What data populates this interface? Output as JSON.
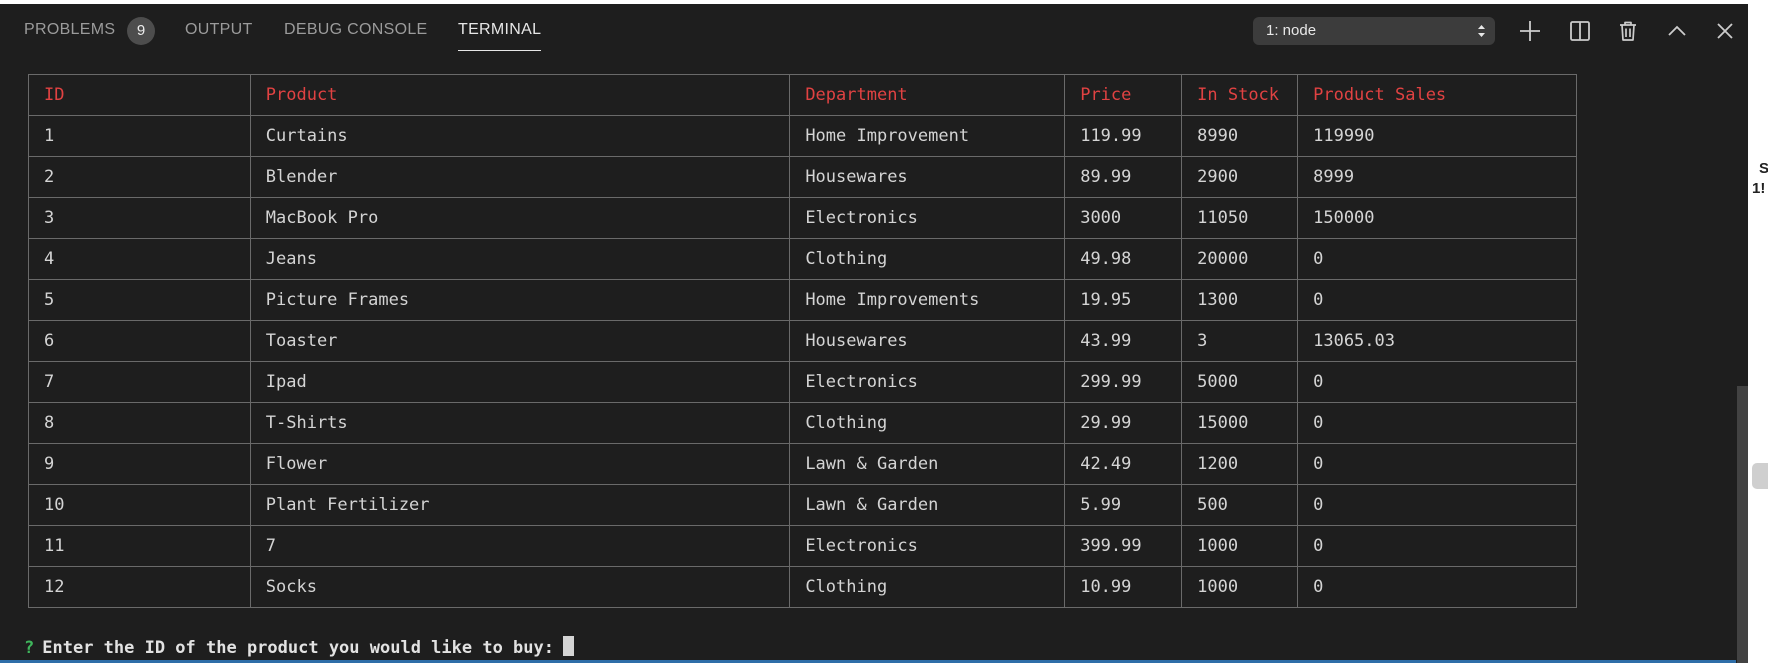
{
  "tabs": [
    {
      "label": "PROBLEMS",
      "badge": "9"
    },
    {
      "label": "OUTPUT"
    },
    {
      "label": "DEBUG CONSOLE"
    },
    {
      "label": "TERMINAL"
    }
  ],
  "terminal_select": {
    "value": "1: node"
  },
  "toolbar_icons": [
    "plus-icon",
    "split-icon",
    "trash-icon",
    "chevron-up-icon",
    "close-icon"
  ],
  "table": {
    "columns": [
      "ID",
      "Product",
      "Department",
      "Price",
      "In Stock",
      "Product Sales"
    ],
    "rows": [
      [
        "1",
        "Curtains",
        "Home Improvement",
        "119.99",
        "8990",
        "119990"
      ],
      [
        "2",
        "Blender",
        "Housewares",
        "89.99",
        "2900",
        "8999"
      ],
      [
        "3",
        "MacBook Pro",
        "Electronics",
        "3000",
        "11050",
        "150000"
      ],
      [
        "4",
        "Jeans",
        "Clothing",
        "49.98",
        "20000",
        "0"
      ],
      [
        "5",
        "Picture Frames",
        "Home Improvements",
        "19.95",
        "1300",
        "0"
      ],
      [
        "6",
        "Toaster",
        "Housewares",
        "43.99",
        "3",
        "13065.03"
      ],
      [
        "7",
        "Ipad",
        "Electronics",
        "299.99",
        "5000",
        "0"
      ],
      [
        "8",
        "T-Shirts",
        "Clothing",
        "29.99",
        "15000",
        "0"
      ],
      [
        "9",
        "Flower",
        "Lawn & Garden",
        "42.49",
        "1200",
        "0"
      ],
      [
        "10",
        "Plant Fertilizer",
        "Lawn & Garden",
        "5.99",
        "500",
        "0"
      ],
      [
        "11",
        "7",
        "Electronics",
        "399.99",
        "1000",
        "0"
      ],
      [
        "12",
        "Socks",
        "Clothing",
        "10.99",
        "1000",
        "0"
      ]
    ]
  },
  "prompt": {
    "symbol": "?",
    "text": "Enter the ID of the product you would like to buy:"
  },
  "side_fragments": [
    "S",
    "1!"
  ],
  "colors": {
    "header_text": "#e14242",
    "prompt_symbol": "#3fb65c",
    "panel_bg": "#1e1e1e"
  }
}
